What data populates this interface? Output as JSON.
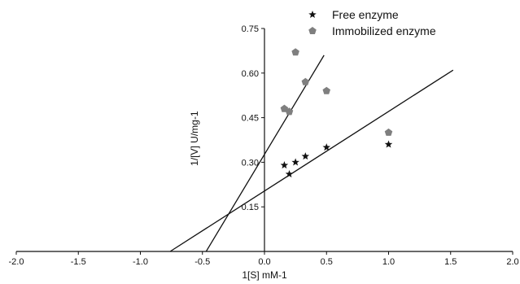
{
  "chart_data": {
    "type": "scatter",
    "title": "",
    "xlabel": "1[S] mM-1",
    "ylabel": "1/[V] U/mg-1",
    "xlim": [
      -2.0,
      2.0
    ],
    "ylim": [
      0.0,
      0.75
    ],
    "x_ticks": [
      -2.0,
      -1.5,
      -1.0,
      -0.5,
      0.0,
      0.5,
      1.0,
      1.5,
      2.0
    ],
    "x_tick_labels": [
      "-2.0",
      "-1.5",
      "-1.0",
      "-0.5",
      "0.0",
      "0.5",
      "1.0",
      "1.5",
      "2.0"
    ],
    "y_ticks": [
      0.15,
      0.3,
      0.45,
      0.6,
      0.75
    ],
    "y_tick_labels": [
      "0.15",
      "0.30",
      "0.45",
      "0.60",
      "0.75"
    ],
    "y_axis_at_x": 0.0,
    "grid": false,
    "legend_position": "top-right",
    "series": [
      {
        "name": "Free enzyme",
        "marker": "star",
        "color": "#111111",
        "x": [
          0.16,
          0.2,
          0.25,
          0.33,
          0.5,
          1.0
        ],
        "y": [
          0.29,
          0.26,
          0.3,
          0.32,
          0.35,
          0.36
        ],
        "fit_line": {
          "x": [
            -0.76,
            1.52
          ],
          "y": [
            0.0,
            0.61
          ]
        }
      },
      {
        "name": "Immobilized enzyme",
        "marker": "pentagon",
        "color": "#7f7f7f",
        "x": [
          0.16,
          0.2,
          0.25,
          0.33,
          0.5,
          1.0
        ],
        "y": [
          0.48,
          0.47,
          0.67,
          0.57,
          0.54,
          0.4
        ],
        "fit_line": {
          "x": [
            -0.47,
            0.48
          ],
          "y": [
            0.0,
            0.66
          ]
        }
      }
    ]
  }
}
